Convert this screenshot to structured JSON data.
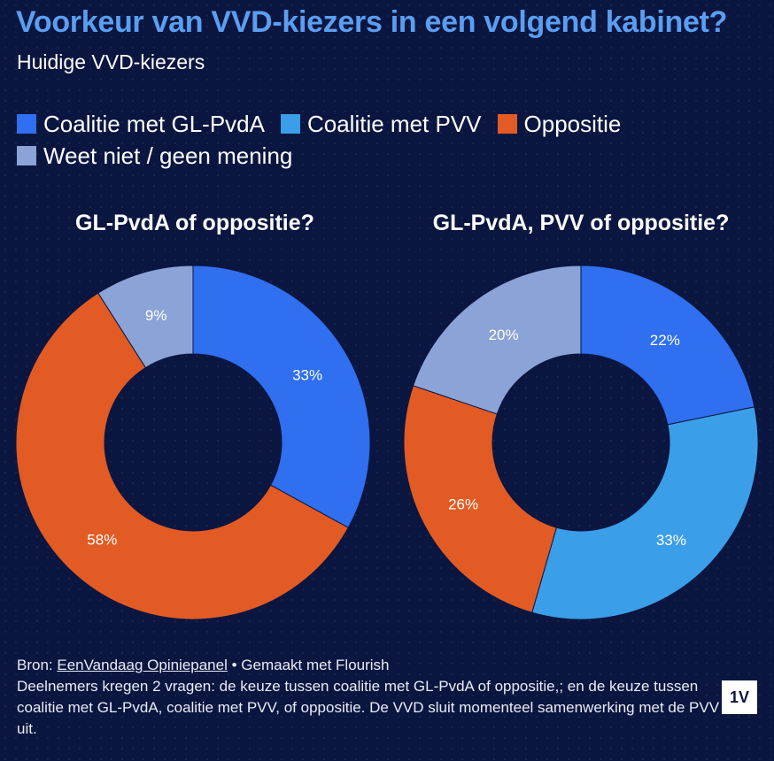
{
  "header": {
    "title": "Voorkeur van VVD-kiezers in een volgend kabinet?",
    "subtitle": "Huidige VVD-kiezers"
  },
  "legend": [
    {
      "label": "Coalitie met GL-PvdA",
      "color": "#2f6ff0"
    },
    {
      "label": "Coalitie met PVV",
      "color": "#3a9fe8"
    },
    {
      "label": "Oppositie",
      "color": "#e25b24"
    },
    {
      "label": "Weet niet / geen mening",
      "color": "#8ba3d6"
    }
  ],
  "chart_data": [
    {
      "type": "pie",
      "title": "GL-PvdA of oppositie?",
      "categories": [
        "Coalitie met GL-PvdA",
        "Oppositie",
        "Weet niet / geen mening"
      ],
      "values": [
        33,
        58,
        9
      ],
      "labels": [
        "33%",
        "58%",
        "9%"
      ],
      "colors": [
        "#2f6ff0",
        "#e25b24",
        "#8ba3d6"
      ]
    },
    {
      "type": "pie",
      "title": "GL-PvdA, PVV of oppositie?",
      "categories": [
        "Coalitie met GL-PvdA",
        "Coalitie met PVV",
        "Oppositie",
        "Weet niet / geen mening"
      ],
      "values": [
        22,
        33,
        26,
        20
      ],
      "labels": [
        "22%",
        "33%",
        "26%",
        "20%"
      ],
      "colors": [
        "#2f6ff0",
        "#3a9fe8",
        "#e25b24",
        "#8ba3d6"
      ]
    }
  ],
  "footer": {
    "source_prefix": "Bron: ",
    "source_link": "EenVandaag Opiniepanel",
    "source_suffix": " • Gemaakt met Flourish",
    "note": "Deelnemers kregen 2 vragen: de keuze tussen coalitie met GL-PvdA of oppositie,; en de keuze tussen coalitie met GL-PvdA, coalitie met PVV, of oppositie. De VVD sluit momenteel samenwerking met de PVV uit."
  },
  "logo": {
    "text": "1V"
  }
}
